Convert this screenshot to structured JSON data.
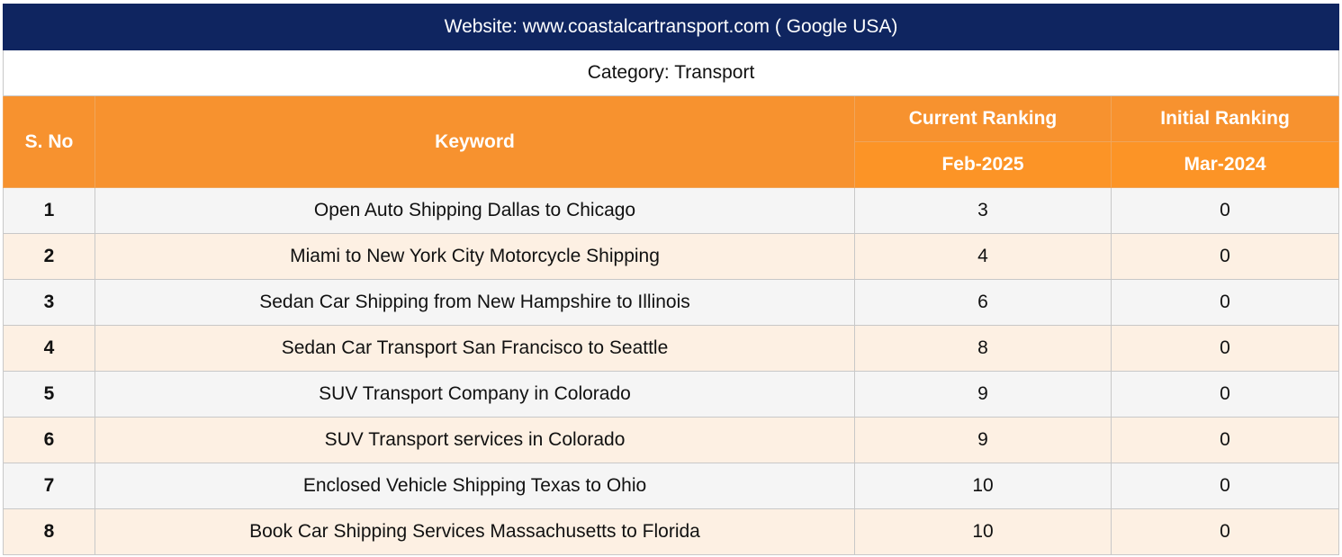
{
  "title": "Website: www.coastalcartransport.com ( Google USA)",
  "category": "Category: Transport",
  "headers": {
    "sno": "S. No",
    "keyword": "Keyword",
    "current_ranking": "Current Ranking",
    "initial_ranking": "Initial Ranking",
    "current_date": "Feb-2025",
    "initial_date": "Mar-2024"
  },
  "rows": [
    {
      "sno": "1",
      "keyword": "Open Auto Shipping Dallas to Chicago",
      "current": "3",
      "initial": "0"
    },
    {
      "sno": "2",
      "keyword": "Miami to New York City Motorcycle Shipping",
      "current": "4",
      "initial": "0"
    },
    {
      "sno": "3",
      "keyword": "Sedan Car Shipping from New Hampshire to Illinois",
      "current": "6",
      "initial": "0"
    },
    {
      "sno": "4",
      "keyword": "Sedan Car Transport San Francisco to Seattle",
      "current": "8",
      "initial": "0"
    },
    {
      "sno": "5",
      "keyword": "SUV Transport Company in Colorado",
      "current": "9",
      "initial": "0"
    },
    {
      "sno": "6",
      "keyword": "SUV Transport services in Colorado",
      "current": "9",
      "initial": "0"
    },
    {
      "sno": "7",
      "keyword": "Enclosed Vehicle Shipping Texas to Ohio",
      "current": "10",
      "initial": "0"
    },
    {
      "sno": "8",
      "keyword": "Book Car Shipping Services Massachusetts to Florida",
      "current": "10",
      "initial": "0"
    }
  ],
  "colors": {
    "title_bg": "#0f2560",
    "header_bg": "#f7922f",
    "row_odd_bg": "#f5f5f5",
    "row_even_bg": "#fdf0e3"
  }
}
